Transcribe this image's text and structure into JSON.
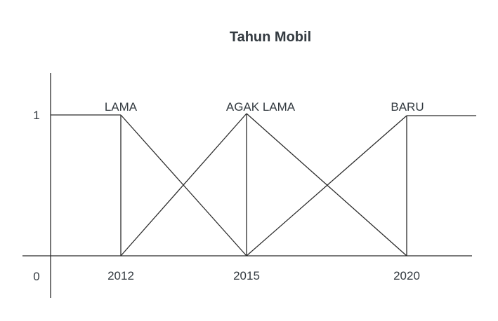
{
  "title": "Tahun Mobil",
  "y_ticks": {
    "one": "1",
    "zero": "0"
  },
  "x_ticks": {
    "t2012": "2012",
    "t2015": "2015",
    "t2020": "2020"
  },
  "sets": {
    "lama": "LAMA",
    "agak_lama": "AGAK LAMA",
    "baru": "BARU"
  },
  "chart_data": {
    "type": "line",
    "title": "Tahun Mobil",
    "xlabel": "",
    "ylabel": "",
    "x_ticks": [
      2012,
      2015,
      2020
    ],
    "y_ticks": [
      0,
      1
    ],
    "series": [
      {
        "name": "LAMA",
        "points": [
          [
            "min",
            1
          ],
          [
            2012,
            1
          ],
          [
            2015,
            0
          ]
        ]
      },
      {
        "name": "AGAK LAMA",
        "points": [
          [
            2012,
            0
          ],
          [
            2015,
            1
          ],
          [
            2020,
            0
          ]
        ]
      },
      {
        "name": "BARU",
        "points": [
          [
            2015,
            0
          ],
          [
            2020,
            1
          ],
          [
            "max",
            1
          ]
        ]
      }
    ],
    "grid": false,
    "legend": "none"
  }
}
